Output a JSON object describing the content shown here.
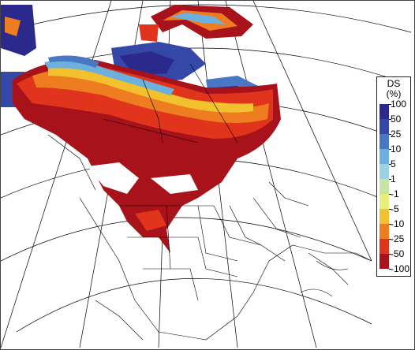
{
  "map": {
    "colors": {
      "ocean": "#ffffff",
      "land": "#ffffff",
      "border": "#000000",
      "graticule": "#000000"
    },
    "icons": [
      "north-america-map"
    ]
  },
  "legend": {
    "title_line1": "DS",
    "title_line2": "(%)",
    "ticks": [
      "100",
      "50",
      "25",
      "10",
      "5",
      "1",
      "-1",
      "-5",
      "-10",
      "-25",
      "-50",
      "-100"
    ],
    "colors": [
      "#2b2a8c",
      "#3448a8",
      "#4a77c4",
      "#6cb0dd",
      "#9ad2e3",
      "#c7e4a4",
      "#e7ee7a",
      "#f2c12e",
      "#ee7d22",
      "#e0341c",
      "#a8121a"
    ]
  }
}
